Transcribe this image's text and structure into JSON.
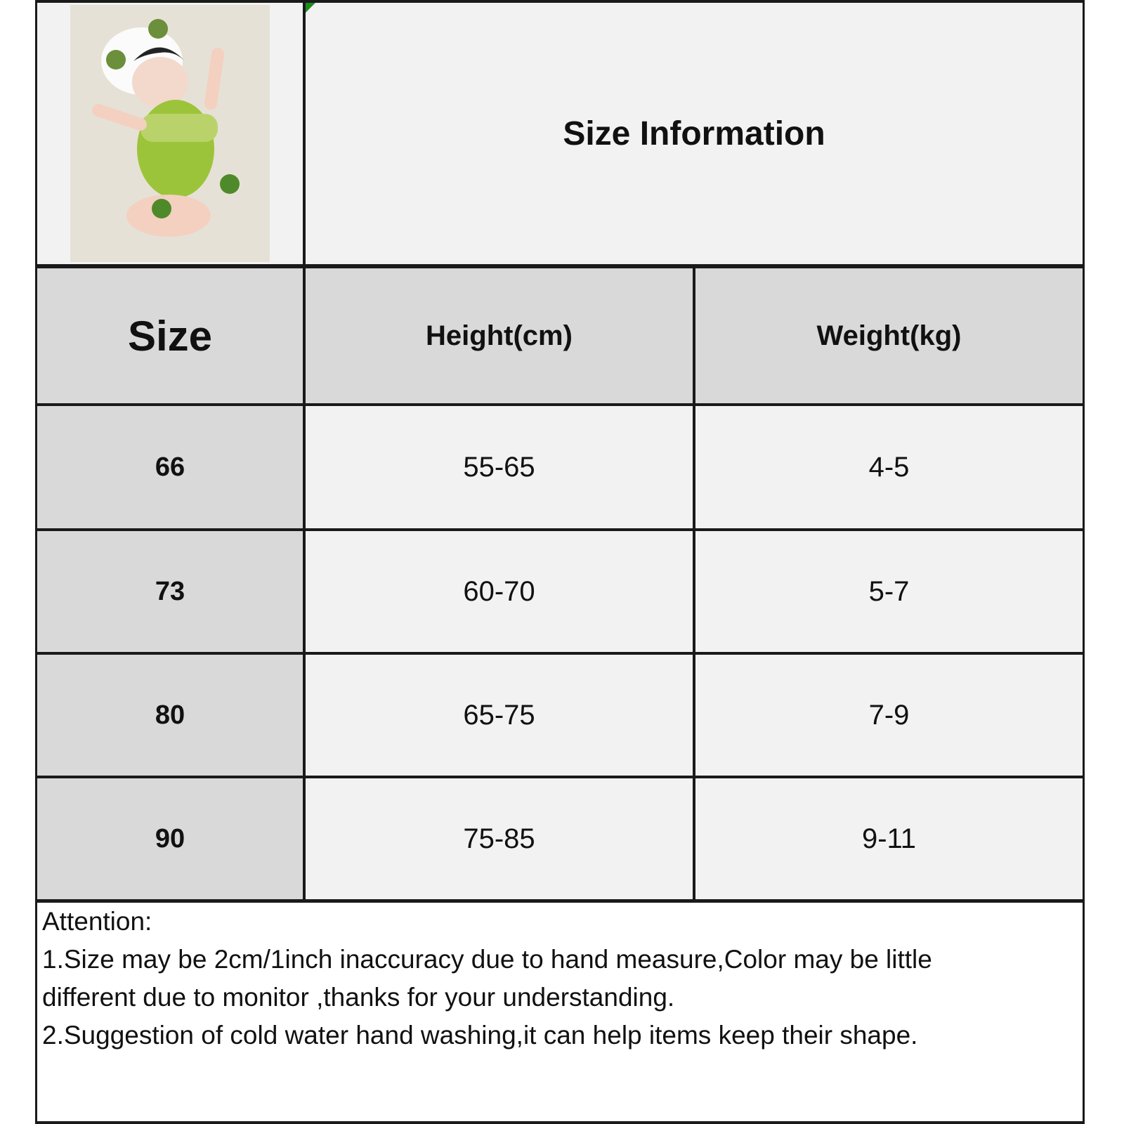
{
  "title": "Size Information",
  "photo": {
    "description_icon": "product-photo-baby-romper",
    "accent": "#8dbb2e"
  },
  "table": {
    "headers": [
      "Size",
      "Height(cm)",
      "Weight(kg)"
    ],
    "rows": [
      [
        "66",
        "55-65",
        "4-5"
      ],
      [
        "73",
        "60-70",
        "5-7"
      ],
      [
        "80",
        "65-75",
        "7-9"
      ],
      [
        "90",
        "75-85",
        "9-11"
      ]
    ]
  },
  "notes": {
    "heading": "Attention:",
    "line1": "1.Size may be 2cm/1inch inaccuracy due to hand measure,Color may be little",
    "line2": "different due to monitor ,thanks for your understanding.",
    "line3": "2.Suggestion of cold water hand washing,it can help items keep their shape."
  }
}
